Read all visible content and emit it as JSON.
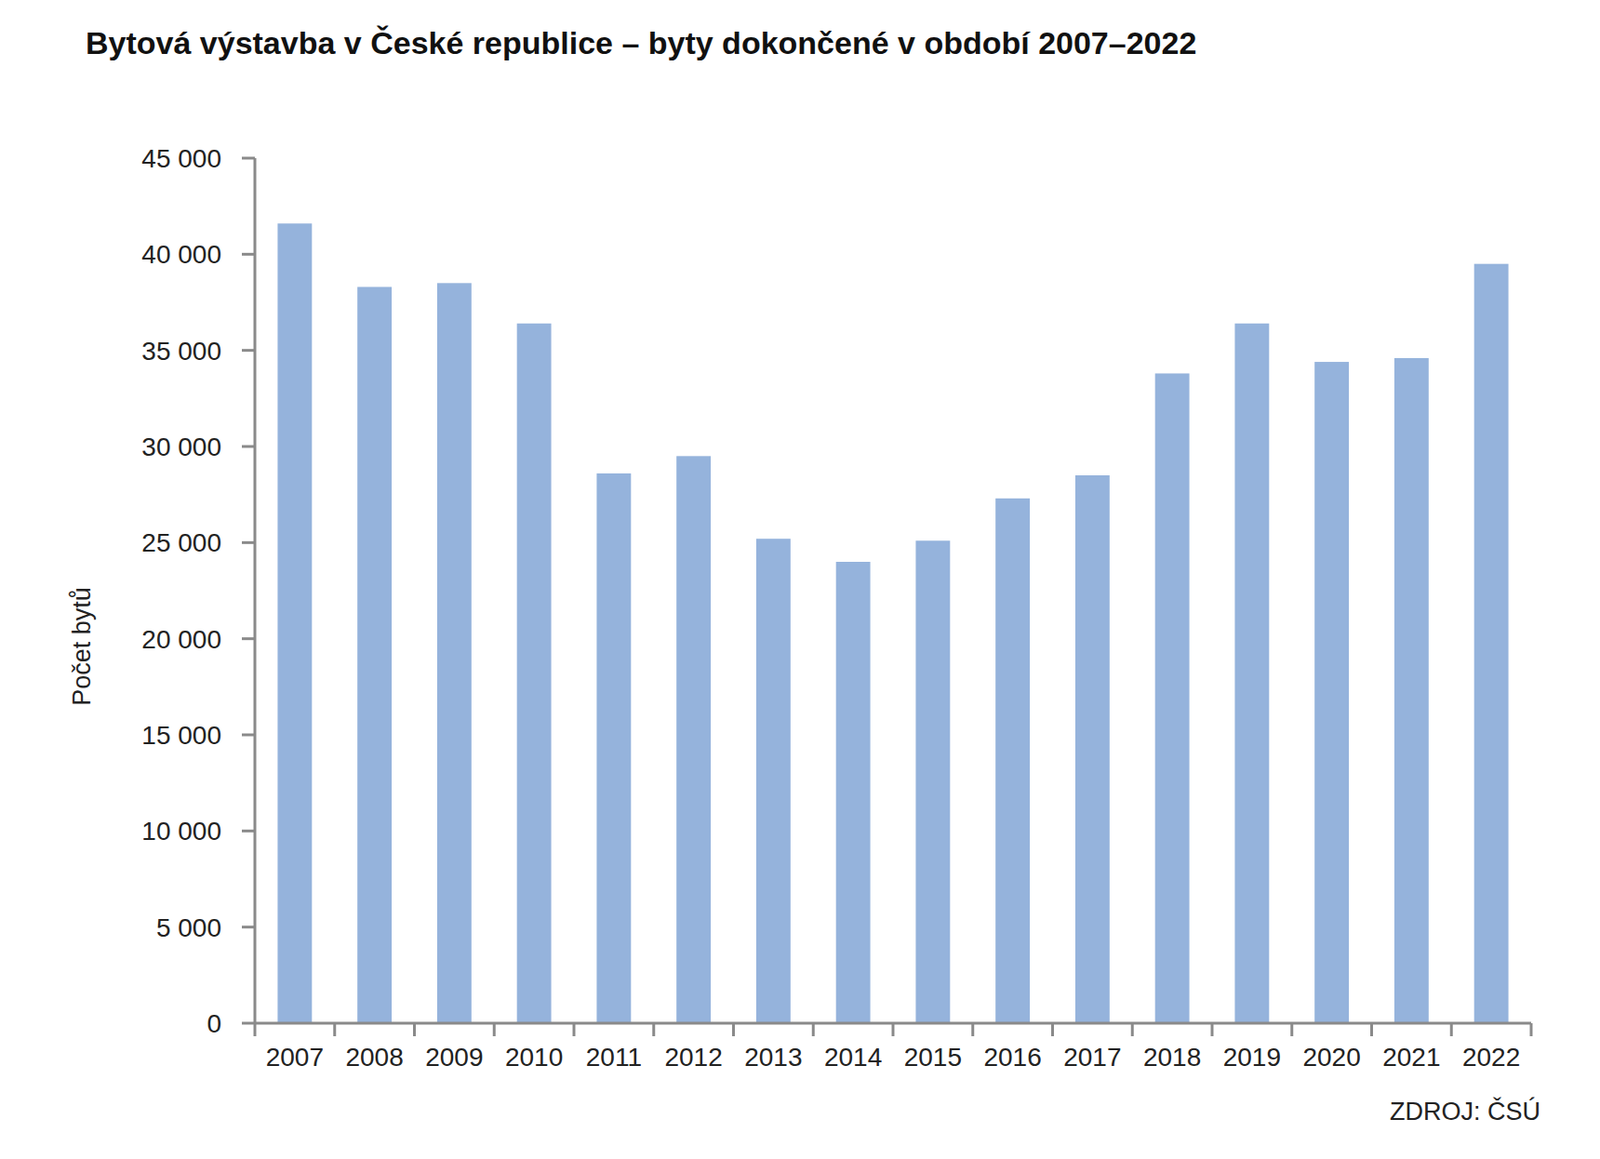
{
  "chart_data": {
    "type": "bar",
    "title": "Bytová výstavba v České republice – byty dokončené v období 2007–2022",
    "y_label": "Počet bytů",
    "source": "ZDROJ: ČSÚ",
    "categories": [
      "2007",
      "2008",
      "2009",
      "2010",
      "2011",
      "2012",
      "2013",
      "2014",
      "2015",
      "2016",
      "2017",
      "2018",
      "2019",
      "2020",
      "2021",
      "2022"
    ],
    "values": [
      41600,
      38300,
      38500,
      36400,
      28600,
      29500,
      25200,
      24000,
      25100,
      27300,
      28500,
      33800,
      36400,
      34400,
      34600,
      39500
    ],
    "color": "#95b3dc",
    "ylim": [
      0,
      45000
    ],
    "yticks": [
      0,
      {
        "value": 5000,
        "label": "5 000"
      },
      {
        "value": 10000,
        "label": "10 000"
      },
      {
        "value": 15000,
        "label": "15 000"
      },
      {
        "value": 20000,
        "label": "20 000"
      },
      {
        "value": 25000,
        "label": "25 000"
      },
      {
        "value": 30000,
        "label": "30 000"
      },
      {
        "value": 35000,
        "label": "35 000"
      },
      {
        "value": 40000,
        "label": "40 000"
      },
      {
        "value": 45000,
        "label": "45 000"
      }
    ],
    "grid": false
  }
}
